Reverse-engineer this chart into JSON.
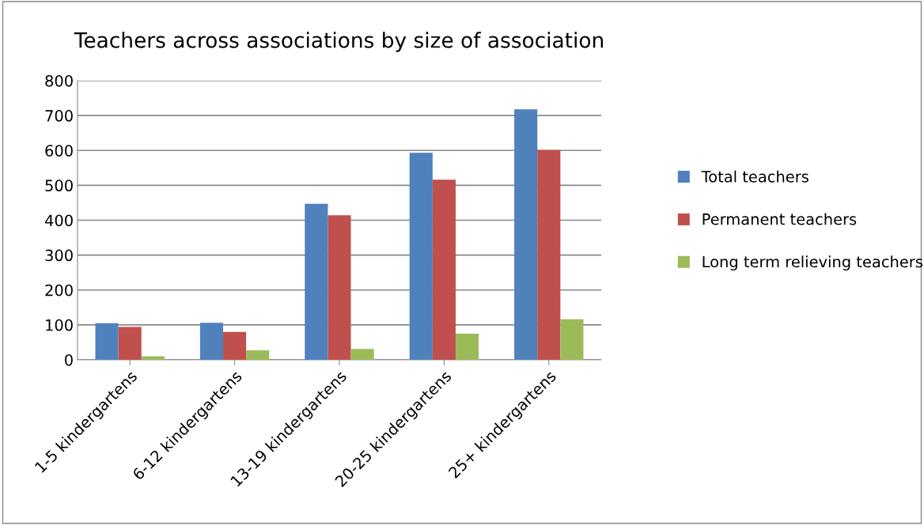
{
  "chart_data": {
    "type": "bar",
    "title": "Teachers across associations by size of association",
    "categories": [
      "1-5 kindergartens",
      "6-12 kindergartens",
      "13-19 kindergartens",
      "20-25 kindergartens",
      "25+ kindergartens"
    ],
    "series": [
      {
        "name": "Total teachers",
        "color": "#4f81bd",
        "values": [
          105,
          106,
          447,
          593,
          718
        ]
      },
      {
        "name": "Permanent teachers",
        "color": "#c0504d",
        "values": [
          94,
          80,
          414,
          516,
          601
        ]
      },
      {
        "name": "Long term relieving teachers",
        "color": "#9bbb59",
        "values": [
          10,
          27,
          31,
          75,
          116
        ]
      }
    ],
    "ylim": [
      0,
      800
    ],
    "yticks": [
      0,
      100,
      200,
      300,
      400,
      500,
      600,
      700,
      800
    ],
    "grid": "y",
    "legend": "right"
  }
}
